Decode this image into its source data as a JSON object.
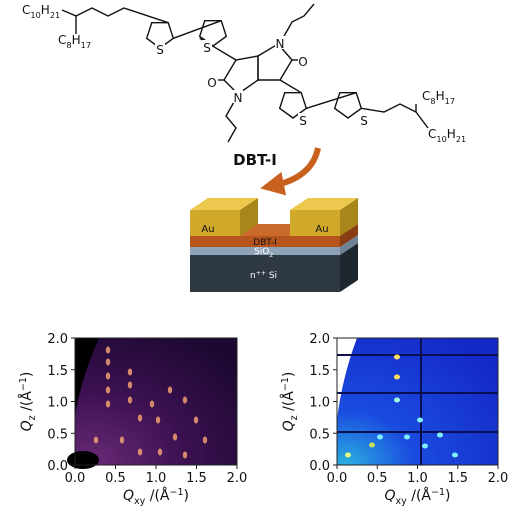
{
  "molecule": {
    "name": "DBT-I",
    "chains": [
      [
        "C",
        "10",
        "H",
        "21"
      ],
      [
        "C",
        "8",
        "H",
        "17"
      ],
      [
        "C",
        "8",
        "H",
        "17"
      ],
      [
        "C",
        "10",
        "H",
        "21"
      ]
    ],
    "atom_labels": [
      "S",
      "S",
      "N",
      "O",
      "O",
      "N",
      "S",
      "S"
    ]
  },
  "device": {
    "electrodes": [
      "Au",
      "Au"
    ],
    "semiconductor": "DBT-I",
    "dielectric": [
      "SiO",
      "2"
    ],
    "substrate": [
      "n",
      "++",
      " Si"
    ]
  },
  "panels": [
    {
      "xlim": [
        0,
        2
      ],
      "ylim": [
        0,
        2
      ],
      "xticks": [
        {
          "value": 0,
          "label": "0.0"
        },
        0.5,
        {
          "value": 1,
          "label": "1.0"
        },
        1.5,
        {
          "value": 2,
          "label": "2.0"
        }
      ],
      "yticks": [
        {
          "value": 0,
          "label": "0.0"
        },
        0.5,
        {
          "value": 1,
          "label": "1.0"
        },
        1.5,
        {
          "value": 2,
          "label": "2.0"
        }
      ],
      "xlabel": [
        "Q",
        "xy",
        " /(Å",
        "−1",
        ")"
      ],
      "ylabel": [
        "Q",
        "z",
        " /(Å",
        "−1",
        ")"
      ]
    },
    {
      "xlim": [
        0,
        2
      ],
      "ylim": [
        0,
        2
      ],
      "xticks": [
        {
          "value": 0,
          "label": "0.0"
        },
        0.5,
        {
          "value": 1,
          "label": "1.0"
        },
        1.5,
        {
          "value": 2,
          "label": "2.0"
        }
      ],
      "yticks": [
        {
          "value": 0,
          "label": "0.0"
        },
        0.5,
        {
          "value": 1,
          "label": "1.0"
        },
        1.5,
        {
          "value": 2,
          "label": "2.0"
        }
      ],
      "xlabel": [
        "Q",
        "xy",
        " /(Å",
        "−1",
        ")"
      ],
      "ylabel": [
        "Q",
        "z",
        " /(Å",
        "−1",
        ")"
      ]
    }
  ]
}
